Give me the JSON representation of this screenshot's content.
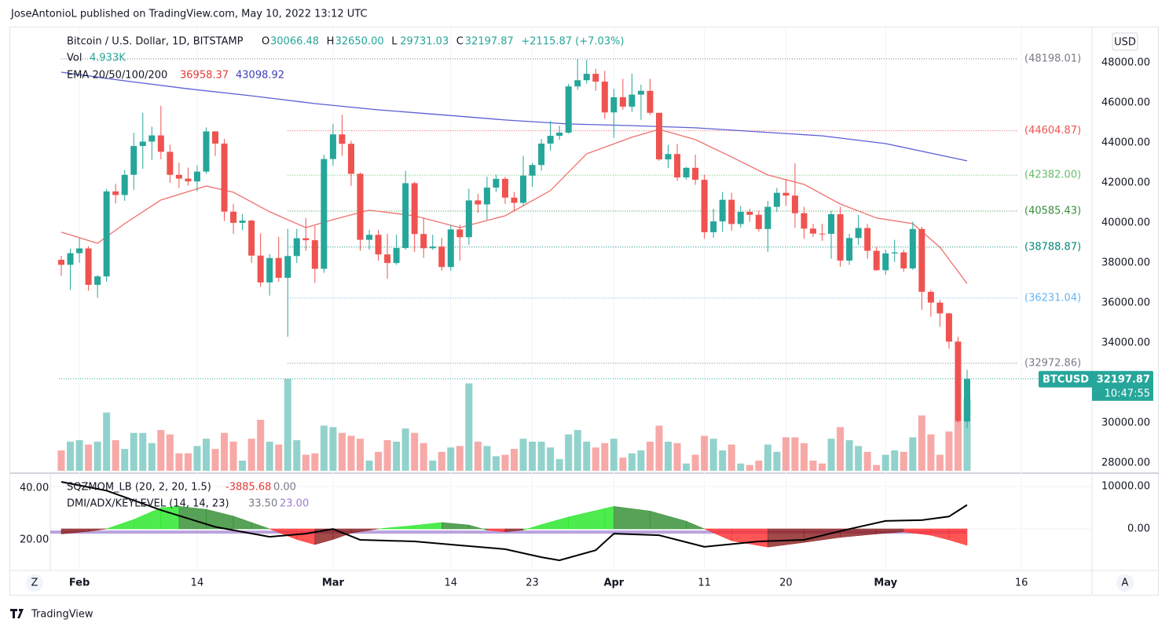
{
  "header": {
    "publisher_line": "JoseAntonioL published on TradingView.com, May 10, 2022 13:12 UTC",
    "logo": "TradingView",
    "left_button": "Z",
    "right_button": "A",
    "currency": "USD"
  },
  "chart_data": [
    {
      "type": "candlestick",
      "title": "Bitcoin / U.S. Dollar, 1D, BITSTAMP",
      "legend": {
        "ohlc": [
          [
            "O",
            "30066.48"
          ],
          [
            "H",
            "32650.00"
          ],
          [
            "L",
            "29731.03"
          ],
          [
            "C",
            "32197.87"
          ]
        ],
        "change": "+2115.87 (+7.03%)",
        "vol_label": "Vol",
        "vol_value": "4.933K",
        "ema_label": "EMA 20/50/100/200",
        "ema_values": [
          "36958.37",
          "43098.92"
        ]
      },
      "up_color": "#26a69a",
      "down_color": "#ef5350",
      "x": [
        "2022-01-30",
        "2022-01-31",
        "2022-02-01",
        "2022-02-02",
        "2022-02-03",
        "2022-02-04",
        "2022-02-05",
        "2022-02-06",
        "2022-02-07",
        "2022-02-08",
        "2022-02-09",
        "2022-02-10",
        "2022-02-11",
        "2022-02-12",
        "2022-02-13",
        "2022-02-14",
        "2022-02-15",
        "2022-02-16",
        "2022-02-17",
        "2022-02-18",
        "2022-02-19",
        "2022-02-20",
        "2022-02-21",
        "2022-02-22",
        "2022-02-23",
        "2022-02-24",
        "2022-02-25",
        "2022-02-26",
        "2022-02-27",
        "2022-02-28",
        "2022-03-01",
        "2022-03-02",
        "2022-03-03",
        "2022-03-04",
        "2022-03-05",
        "2022-03-06",
        "2022-03-07",
        "2022-03-08",
        "2022-03-09",
        "2022-03-10",
        "2022-03-11",
        "2022-03-12",
        "2022-03-13",
        "2022-03-14",
        "2022-03-15",
        "2022-03-16",
        "2022-03-17",
        "2022-03-18",
        "2022-03-19",
        "2022-03-20",
        "2022-03-21",
        "2022-03-22",
        "2022-03-23",
        "2022-03-24",
        "2022-03-25",
        "2022-03-26",
        "2022-03-27",
        "2022-03-28",
        "2022-03-29",
        "2022-03-30",
        "2022-03-31",
        "2022-04-01",
        "2022-04-02",
        "2022-04-03",
        "2022-04-04",
        "2022-04-05",
        "2022-04-06",
        "2022-04-07",
        "2022-04-08",
        "2022-04-09",
        "2022-04-10",
        "2022-04-11",
        "2022-04-12",
        "2022-04-13",
        "2022-04-14",
        "2022-04-15",
        "2022-04-16",
        "2022-04-17",
        "2022-04-18",
        "2022-04-19",
        "2022-04-20",
        "2022-04-21",
        "2022-04-22",
        "2022-04-23",
        "2022-04-24",
        "2022-04-25",
        "2022-04-26",
        "2022-04-27",
        "2022-04-28",
        "2022-04-29",
        "2022-04-30",
        "2022-05-01",
        "2022-05-02",
        "2022-05-03",
        "2022-05-04",
        "2022-05-05",
        "2022-05-06",
        "2022-05-07",
        "2022-05-08",
        "2022-05-09",
        "2022-05-10"
      ],
      "open": [
        38150,
        37900,
        38480,
        38720,
        36900,
        37320,
        41570,
        41390,
        42400,
        43840,
        44060,
        44370,
        43550,
        42400,
        42210,
        42070,
        42560,
        44570,
        43960,
        40560,
        40000,
        40110,
        38360,
        37020,
        38240,
        37250,
        38340,
        39230,
        39130,
        37700,
        43190,
        44420,
        43950,
        42450,
        39150,
        39400,
        38420,
        37990,
        38740,
        41980,
        39440,
        38730,
        38810,
        37790,
        39670,
        39280,
        41120,
        40920,
        41760,
        42200,
        41260,
        41000,
        42360,
        42890,
        43960,
        44350,
        44510,
        46820,
        47130,
        47450,
        47060,
        45520,
        46280,
        45810,
        46410,
        46600,
        45500,
        43170,
        43440,
        42270,
        42750,
        42150,
        39530,
        40070,
        41150,
        39940,
        40550,
        40400,
        39690,
        40800,
        41500,
        41360,
        40480,
        39710,
        39460,
        39450,
        40430,
        38110,
        39240,
        39740,
        38600,
        37630,
        38470,
        38520,
        37720,
        39690,
        36550,
        36010,
        35470,
        34060,
        30066.48
      ],
      "high": [
        38350,
        38700,
        39240,
        38830,
        37390,
        41700,
        41950,
        42640,
        44500,
        45500,
        44800,
        45850,
        43900,
        43000,
        42760,
        42870,
        44770,
        44580,
        44200,
        40950,
        40440,
        40150,
        39480,
        38440,
        39300,
        39700,
        39700,
        40250,
        39850,
        43400,
        44950,
        45400,
        44100,
        42520,
        39650,
        39640,
        39450,
        39400,
        42600,
        42050,
        40250,
        39400,
        39250,
        39900,
        39900,
        41700,
        41450,
        42300,
        42400,
        42300,
        41550,
        43350,
        43000,
        44200,
        45100,
        44850,
        46950,
        48200,
        48150,
        47700,
        47600,
        46700,
        47200,
        47450,
        46900,
        47200,
        45500,
        43900,
        43950,
        42800,
        43400,
        42400,
        40700,
        41550,
        41500,
        40850,
        40700,
        40600,
        41100,
        41750,
        42200,
        42980,
        40800,
        39950,
        39950,
        40600,
        40800,
        39450,
        40400,
        39930,
        38800,
        38650,
        39150,
        38650,
        40050,
        39800,
        36650,
        36150,
        35500,
        34300,
        32650
      ],
      "low": [
        37350,
        36650,
        38000,
        36600,
        36250,
        37050,
        40970,
        41100,
        41650,
        42700,
        43150,
        43180,
        42000,
        41750,
        41860,
        41570,
        42450,
        43340,
        40100,
        39450,
        39630,
        38000,
        36800,
        36360,
        37050,
        34300,
        38000,
        38600,
        37000,
        37500,
        42850,
        43350,
        41850,
        38600,
        38650,
        38100,
        37200,
        37900,
        38650,
        38550,
        38250,
        38650,
        37600,
        37600,
        38100,
        38900,
        40500,
        40150,
        41550,
        40950,
        40550,
        40850,
        41800,
        42600,
        43600,
        44150,
        44450,
        46650,
        46950,
        46600,
        45200,
        44250,
        45650,
        45550,
        45150,
        45400,
        43100,
        42750,
        42100,
        42150,
        41900,
        39200,
        39250,
        39550,
        39600,
        39770,
        40050,
        39550,
        38550,
        40550,
        40850,
        39750,
        39200,
        39300,
        39100,
        38200,
        37800,
        37900,
        38900,
        38200,
        37600,
        37400,
        38050,
        37550,
        37650,
        35650,
        35300,
        34800,
        33700,
        30000,
        29731.03
      ],
      "close": [
        37900,
        38480,
        38720,
        36900,
        37320,
        41570,
        41390,
        42400,
        43840,
        44060,
        44370,
        43550,
        42400,
        42210,
        42070,
        42560,
        44570,
        43960,
        40560,
        40000,
        40110,
        38360,
        37020,
        38240,
        37250,
        38340,
        39230,
        39130,
        37700,
        43190,
        44420,
        43950,
        42450,
        39150,
        39400,
        38420,
        37990,
        38740,
        41980,
        39440,
        38730,
        38810,
        37790,
        39670,
        39280,
        41120,
        40920,
        41760,
        42200,
        41260,
        41000,
        42360,
        42890,
        43960,
        44350,
        44510,
        46820,
        47130,
        47450,
        47060,
        45520,
        46280,
        45810,
        46410,
        46600,
        45500,
        43170,
        43440,
        42270,
        42750,
        42150,
        39530,
        40070,
        41150,
        39940,
        40550,
        40400,
        39690,
        40800,
        41500,
        41360,
        40480,
        39710,
        39460,
        39450,
        40430,
        38110,
        39240,
        39740,
        38600,
        37630,
        38470,
        38520,
        37720,
        39690,
        36550,
        36010,
        35470,
        34060,
        30080,
        32197.87
      ],
      "volume": [
        1400,
        2000,
        2100,
        1800,
        2000,
        4000,
        2100,
        1500,
        2600,
        2600,
        1900,
        2800,
        2500,
        1200,
        1200,
        1700,
        2200,
        1500,
        2600,
        2000,
        700,
        2200,
        3500,
        2000,
        1800,
        6300,
        2100,
        1100,
        1200,
        3100,
        3000,
        2600,
        2400,
        2200,
        700,
        1300,
        2100,
        2000,
        2900,
        2600,
        1900,
        700,
        1300,
        1600,
        1700,
        6000,
        2000,
        1700,
        1000,
        1100,
        1500,
        2200,
        2000,
        2000,
        1600,
        800,
        2500,
        2800,
        2000,
        1600,
        1900,
        2200,
        900,
        1200,
        1400,
        2000,
        3100,
        2000,
        1900,
        500,
        1100,
        2400,
        2200,
        1400,
        1800,
        500,
        400,
        700,
        1800,
        1300,
        2300,
        2300,
        1900,
        700,
        500,
        2200,
        3000,
        2100,
        1700,
        1300,
        400,
        1100,
        1400,
        1300,
        2300,
        3800,
        2500,
        1100,
        2700,
        3400,
        4933
      ],
      "ema": [
        {
          "color": "#f0706c",
          "x": [
            "2022-01-30",
            "2022-02-03",
            "2022-02-06",
            "2022-02-10",
            "2022-02-15",
            "2022-02-18",
            "2022-02-22",
            "2022-02-26",
            "2022-03-01",
            "2022-03-05",
            "2022-03-10",
            "2022-03-15",
            "2022-03-20",
            "2022-03-25",
            "2022-03-29",
            "2022-04-03",
            "2022-04-06",
            "2022-04-10",
            "2022-04-14",
            "2022-04-18",
            "2022-04-22",
            "2022-04-26",
            "2022-04-30",
            "2022-05-04",
            "2022-05-07",
            "2022-05-10"
          ],
          "values": [
            39530,
            38980,
            39960,
            41140,
            41840,
            41530,
            40550,
            39760,
            40160,
            40630,
            40350,
            39760,
            40350,
            41610,
            43450,
            44280,
            44670,
            44160,
            43290,
            42390,
            41920,
            40940,
            40240,
            39960,
            38780,
            36958.37
          ]
        },
        {
          "color": "#5b5fd6",
          "x": [
            "2022-01-30",
            "2022-02-06",
            "2022-02-13",
            "2022-02-20",
            "2022-02-27",
            "2022-03-06",
            "2022-03-13",
            "2022-03-20",
            "2022-03-27",
            "2022-04-03",
            "2022-04-10",
            "2022-04-17",
            "2022-04-24",
            "2022-05-01",
            "2022-05-10"
          ],
          "values": [
            47530,
            47100,
            46700,
            46350,
            45960,
            45650,
            45400,
            45140,
            44940,
            44860,
            44750,
            44550,
            44350,
            43960,
            43098.92
          ]
        }
      ],
      "levels": [
        {
          "value": 48198.01,
          "label": "(48198.01)",
          "color": "#787b86",
          "from": "2022-01-30"
        },
        {
          "value": 44604.87,
          "label": "(44604.87)",
          "color": "#ef5350",
          "from": "2022-02-24"
        },
        {
          "value": 42382.0,
          "label": "(42382.00)",
          "color": "#66bb6a",
          "from": "2022-02-24"
        },
        {
          "value": 40585.43,
          "label": "(40585.43)",
          "color": "#388e3c",
          "from": "2022-02-24"
        },
        {
          "value": 38788.87,
          "label": "(38788.87)",
          "color": "#00897b",
          "from": "2022-02-24"
        },
        {
          "value": 36231.04,
          "label": "(36231.04)",
          "color": "#64b5f6",
          "from": "2022-02-24"
        },
        {
          "value": 32972.86,
          "label": "(32972.86)",
          "color": "#787b86",
          "from": "2022-02-24"
        }
      ],
      "last_price": {
        "symbol": "BTCUSD",
        "value": 32197.87,
        "label": "32197.87",
        "countdown": "10:47:55"
      },
      "ylim": [
        27600,
        49650
      ],
      "yticks": [
        {
          "value": 28000,
          "label": "28000.00"
        },
        {
          "value": 30000,
          "label": "30000.00"
        },
        {
          "value": 34000,
          "label": "34000.00"
        },
        {
          "value": 36000,
          "label": "36000.00"
        },
        {
          "value": 38000,
          "label": "38000.00"
        },
        {
          "value": 40000,
          "label": "40000.00"
        },
        {
          "value": 42000,
          "label": "42000.00"
        },
        {
          "value": 44000,
          "label": "44000.00"
        },
        {
          "value": 46000,
          "label": "46000.00"
        },
        {
          "value": 48000,
          "label": "48000.00"
        }
      ],
      "xticks": [
        {
          "value": "2022-02-01",
          "label": "Feb"
        },
        {
          "value": "2022-02-14",
          "label": "14"
        },
        {
          "value": "2022-03-01",
          "label": "Mar"
        },
        {
          "value": "2022-03-14",
          "label": "14"
        },
        {
          "value": "2022-03-23",
          "label": "23"
        },
        {
          "value": "2022-04-01",
          "label": "Apr"
        },
        {
          "value": "2022-04-11",
          "label": "11"
        },
        {
          "value": "2022-04-20",
          "label": "20"
        },
        {
          "value": "2022-05-01",
          "label": "May"
        },
        {
          "value": "2022-05-16",
          "label": "16"
        }
      ],
      "grid": true
    },
    {
      "type": "indicator",
      "legend": {
        "sqz_label": "SQZMOM_LB (20, 2, 20, 1.5)",
        "sqz_values": [
          "-3885.68",
          "0.00"
        ],
        "dmi_label": "DMI/ADX/KEYLEVEL (14, 14, 23)",
        "dmi_values": [
          "33.50",
          "23.00"
        ]
      },
      "momentum": {
        "axis": "y2",
        "x": [
          "2022-01-30",
          "2022-02-02",
          "2022-02-04",
          "2022-02-07",
          "2022-02-10",
          "2022-02-12",
          "2022-02-15",
          "2022-02-18",
          "2022-02-20",
          "2022-02-22",
          "2022-02-25",
          "2022-02-27",
          "2022-03-01",
          "2022-03-03",
          "2022-03-06",
          "2022-03-10",
          "2022-03-13",
          "2022-03-16",
          "2022-03-18",
          "2022-03-20",
          "2022-03-22",
          "2022-03-24",
          "2022-03-27",
          "2022-03-31",
          "2022-04-01",
          "2022-04-05",
          "2022-04-09",
          "2022-04-11",
          "2022-04-14",
          "2022-04-18",
          "2022-04-22",
          "2022-04-26",
          "2022-04-30",
          "2022-05-03",
          "2022-05-06",
          "2022-05-08",
          "2022-05-10"
        ],
        "values": [
          -1200,
          -600,
          0,
          2200,
          5000,
          5300,
          4600,
          3000,
          1500,
          0,
          -2500,
          -3700,
          -2500,
          -1000,
          0,
          800,
          1500,
          900,
          -300,
          -700,
          -300,
          1000,
          2800,
          4800,
          5300,
          4200,
          1800,
          0,
          -2800,
          -4300,
          -3200,
          -2000,
          -1200,
          -700,
          -1500,
          -2600,
          -3885.68
        ],
        "colors": {
          "up_pos": "#22e622",
          "down_pos": "#2e8b2e",
          "down_neg": "#ff2a2a",
          "up_neg": "#8b1c1c"
        }
      },
      "adx": {
        "color": "#000000",
        "x": [
          "2022-01-30",
          "2022-02-04",
          "2022-02-10",
          "2022-02-16",
          "2022-02-22",
          "2022-02-26",
          "2022-03-01",
          "2022-03-04",
          "2022-03-10",
          "2022-03-15",
          "2022-03-20",
          "2022-03-24",
          "2022-03-26",
          "2022-03-30",
          "2022-04-01",
          "2022-04-06",
          "2022-04-11",
          "2022-04-17",
          "2022-04-22",
          "2022-04-27",
          "2022-05-01",
          "2022-05-05",
          "2022-05-08",
          "2022-05-10"
        ],
        "values": [
          42.4,
          39,
          31.5,
          25,
          21.2,
          22.4,
          24.2,
          20,
          19.4,
          17.9,
          16.4,
          13.3,
          12.1,
          16,
          22.4,
          21.8,
          17.3,
          19.4,
          20,
          24.2,
          27.3,
          27.6,
          29,
          33.5
        ]
      },
      "keylevel": {
        "value": 23,
        "color": "#9c7bd0"
      },
      "ylim": [
        8.8,
        45.15
      ],
      "yticks": [
        {
          "value": 40,
          "label": "40.00"
        },
        {
          "value": 20,
          "label": "20.00"
        }
      ],
      "y2lim": [
        -9444,
        12778
      ],
      "y2ticks": [
        {
          "value": 10000,
          "label": "10000.00"
        },
        {
          "value": 0,
          "label": "0.00"
        }
      ]
    }
  ]
}
